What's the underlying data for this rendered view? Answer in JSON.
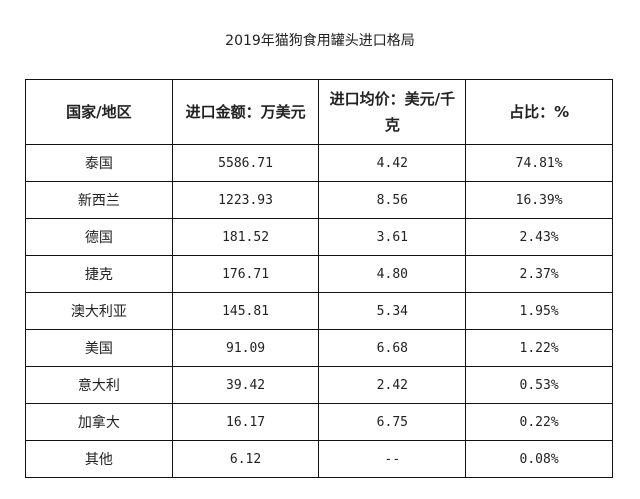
{
  "title": "2019年猫狗食用罐头进口格局",
  "table": {
    "headers": [
      "国家/地区",
      "进口金额：万美元",
      "进口均价：美元/千克",
      "占比：%"
    ],
    "rows": [
      [
        "泰国",
        "5586.71",
        "4.42",
        "74.81%"
      ],
      [
        "新西兰",
        "1223.93",
        "8.56",
        "16.39%"
      ],
      [
        "德国",
        "181.52",
        "3.61",
        "2.43%"
      ],
      [
        "捷克",
        "176.71",
        "4.80",
        "2.37%"
      ],
      [
        "澳大利亚",
        "145.81",
        "5.34",
        "1.95%"
      ],
      [
        "美国",
        "91.09",
        "6.68",
        "1.22%"
      ],
      [
        "意大利",
        "39.42",
        "2.42",
        "0.53%"
      ],
      [
        "加拿大",
        "16.17",
        "6.75",
        "0.22%"
      ],
      [
        "其他",
        "6.12",
        "--",
        "0.08%"
      ]
    ]
  }
}
